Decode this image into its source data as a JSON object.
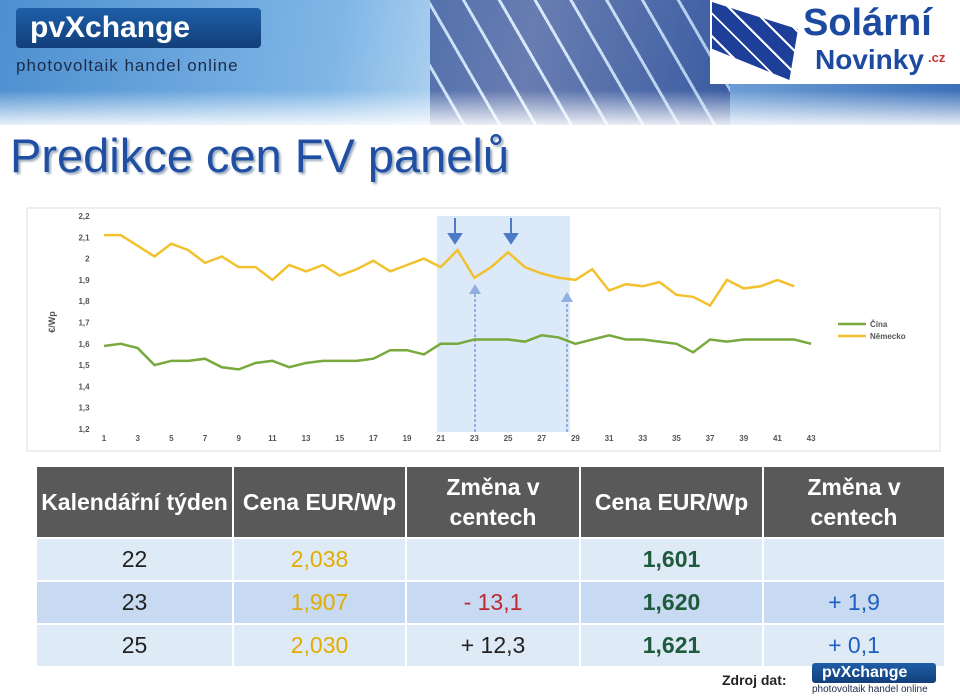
{
  "header": {
    "logo": "pvXchange",
    "logo_sub": "photovoltaik handel online",
    "brand1": "Solární",
    "brand2": "Novinky",
    "brand3": ".cz",
    "title": "Predikce cen FV panelů"
  },
  "chart_data": {
    "type": "line",
    "y_label": "€/Wp",
    "x": [
      1,
      2,
      3,
      4,
      5,
      6,
      7,
      8,
      9,
      10,
      11,
      12,
      13,
      14,
      15,
      16,
      17,
      18,
      19,
      20,
      21,
      22,
      23,
      24,
      25,
      26,
      27,
      28,
      29,
      30,
      31,
      32,
      33,
      34,
      35,
      36,
      37,
      38,
      39,
      40,
      41,
      42,
      43
    ],
    "series": [
      {
        "name": "Čína",
        "color": "#77a93c",
        "values": [
          1.59,
          1.6,
          1.58,
          1.5,
          1.52,
          1.52,
          1.53,
          1.49,
          1.48,
          1.51,
          1.52,
          1.49,
          1.51,
          1.52,
          1.52,
          1.52,
          1.53,
          1.57,
          1.57,
          1.55,
          1.6,
          1.6,
          1.62,
          1.62,
          1.62,
          1.61,
          1.64,
          1.63,
          1.6,
          1.62,
          1.64,
          1.62,
          1.62,
          1.61,
          1.6,
          1.56,
          1.62,
          1.61,
          1.62,
          1.62,
          1.62,
          1.62,
          1.6
        ]
      },
      {
        "name": "Německo",
        "color": "#f2c12e",
        "values": [
          2.11,
          2.11,
          2.06,
          2.01,
          2.07,
          2.04,
          1.98,
          2.01,
          1.96,
          1.96,
          1.9,
          1.97,
          1.94,
          1.97,
          1.92,
          1.95,
          1.99,
          1.94,
          1.97,
          2.0,
          1.96,
          2.04,
          1.91,
          1.96,
          2.03,
          1.96,
          1.93,
          1.91,
          1.9,
          1.95,
          1.85,
          1.88,
          1.87,
          1.89,
          1.83,
          1.82,
          1.78,
          1.9,
          1.86,
          1.87,
          1.9,
          1.87,
          null
        ]
      }
    ],
    "xlim": [
      0.5,
      43.5
    ],
    "xticks": [
      1,
      3,
      5,
      7,
      9,
      11,
      13,
      15,
      17,
      19,
      21,
      23,
      25,
      27,
      29,
      31,
      33,
      35,
      37,
      39,
      41,
      43
    ],
    "ylim": [
      1.2,
      2.2
    ],
    "yticks": [
      {
        "value": 1.2,
        "label": "1,2"
      },
      {
        "value": 1.3,
        "label": "1,3"
      },
      {
        "value": 1.4,
        "label": "1,4"
      },
      {
        "value": 1.5,
        "label": "1,5"
      },
      {
        "value": 1.6,
        "label": "1,6"
      },
      {
        "value": 1.7,
        "label": "1,7"
      },
      {
        "value": 1.8,
        "label": "1,8"
      },
      {
        "value": 1.9,
        "label": "1,9"
      },
      {
        "value": 2,
        "label": "2"
      },
      {
        "value": 2.1,
        "label": "2,1"
      },
      {
        "value": 2.2,
        "label": "2,2"
      }
    ],
    "legend": "right",
    "grid": false
  },
  "table": {
    "columns": [
      "Kalendářní týden",
      "Cena EUR/Wp",
      "Změna v centech",
      "Cena EUR/Wp",
      "Změna v centech"
    ],
    "rows": [
      [
        "22",
        "2,038",
        null,
        "1,601",
        null
      ],
      [
        "23",
        "1,907",
        "- 13,1",
        "1,620",
        "+ 1,9"
      ],
      [
        "25",
        "2,030",
        "+ 12,3",
        "1,621",
        "+ 0,1"
      ]
    ]
  },
  "footer": {
    "source": "Zdroj dat:",
    "logo": "pvXchange",
    "logo_sub": "photovoltaik handel online"
  }
}
